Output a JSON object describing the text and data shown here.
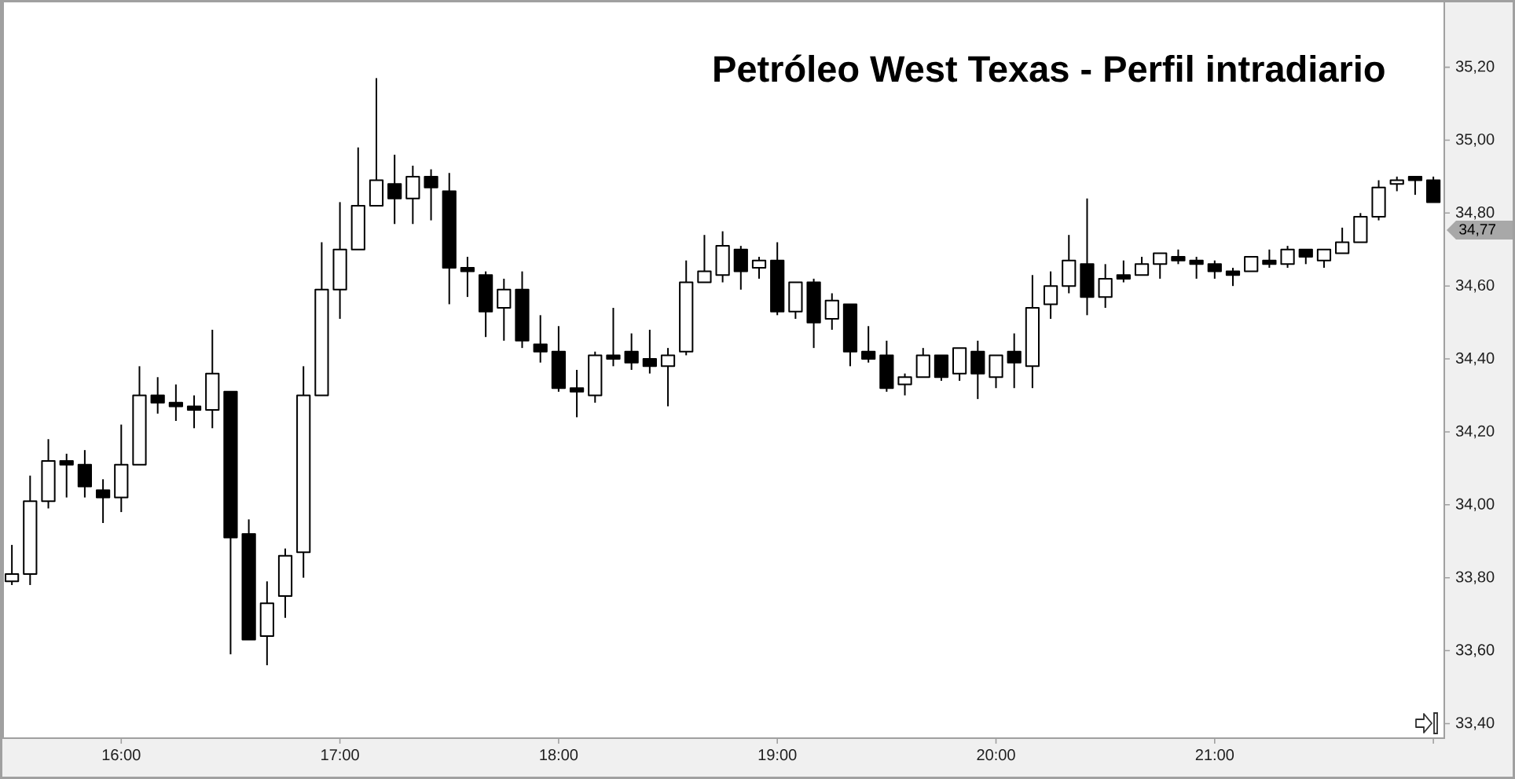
{
  "chart_data": {
    "type": "candlestick",
    "title": "Petróleo West Texas - Perfil intradiario",
    "x": [
      15.5,
      15.5833,
      15.6667,
      15.75,
      15.8333,
      15.9167,
      16,
      16.0833,
      16.1667,
      16.25,
      16.3333,
      16.4167,
      16.5,
      16.5833,
      16.6667,
      16.75,
      16.8333,
      16.9167,
      17,
      17.0833,
      17.1667,
      17.25,
      17.3333,
      17.4167,
      17.5,
      17.5833,
      17.6667,
      17.75,
      17.8333,
      17.9167,
      18,
      18.0833,
      18.1667,
      18.25,
      18.3333,
      18.4167,
      18.5,
      18.5833,
      18.6667,
      18.75,
      18.8333,
      18.9167,
      19,
      19.0833,
      19.1667,
      19.25,
      19.3333,
      19.4167,
      19.5,
      19.5833,
      19.6667,
      19.75,
      19.8333,
      19.9167,
      20,
      20.0833,
      20.1667,
      20.25,
      20.3333,
      20.4167,
      20.5,
      20.5833,
      20.6667,
      20.75,
      20.8333,
      20.9167,
      21,
      21.0833,
      21.1667,
      21.25,
      21.3333,
      21.4167,
      21.5,
      21.5833,
      21.6667,
      21.75,
      21.8333,
      21.9167,
      22
    ],
    "ohlc": [
      [
        33.79,
        33.89,
        33.78,
        33.81
      ],
      [
        33.81,
        34.08,
        33.78,
        34.01
      ],
      [
        34.01,
        34.18,
        33.99,
        34.12
      ],
      [
        34.12,
        34.14,
        34.02,
        34.11
      ],
      [
        34.11,
        34.15,
        34.02,
        34.05
      ],
      [
        34.04,
        34.07,
        33.95,
        34.02
      ],
      [
        34.02,
        34.22,
        33.98,
        34.11
      ],
      [
        34.11,
        34.38,
        34.11,
        34.3
      ],
      [
        34.3,
        34.35,
        34.25,
        34.28
      ],
      [
        34.28,
        34.33,
        34.23,
        34.27
      ],
      [
        34.27,
        34.3,
        34.21,
        34.26
      ],
      [
        34.26,
        34.48,
        34.21,
        34.36
      ],
      [
        34.31,
        34.31,
        33.59,
        33.91
      ],
      [
        33.92,
        33.96,
        33.63,
        33.63
      ],
      [
        33.64,
        33.79,
        33.56,
        33.73
      ],
      [
        33.75,
        33.88,
        33.69,
        33.86
      ],
      [
        33.87,
        34.38,
        33.8,
        34.3
      ],
      [
        34.3,
        34.72,
        34.3,
        34.59
      ],
      [
        34.59,
        34.83,
        34.51,
        34.7
      ],
      [
        34.7,
        34.98,
        34.7,
        34.82
      ],
      [
        34.82,
        35.17,
        34.82,
        34.89
      ],
      [
        34.88,
        34.96,
        34.77,
        34.84
      ],
      [
        34.84,
        34.93,
        34.77,
        34.9
      ],
      [
        34.9,
        34.92,
        34.78,
        34.87
      ],
      [
        34.86,
        34.91,
        34.55,
        34.65
      ],
      [
        34.65,
        34.68,
        34.57,
        34.64
      ],
      [
        34.63,
        34.64,
        34.46,
        34.53
      ],
      [
        34.54,
        34.62,
        34.45,
        34.59
      ],
      [
        34.59,
        34.64,
        34.43,
        34.45
      ],
      [
        34.44,
        34.52,
        34.39,
        34.42
      ],
      [
        34.42,
        34.49,
        34.31,
        34.32
      ],
      [
        34.32,
        34.37,
        34.24,
        34.31
      ],
      [
        34.3,
        34.42,
        34.28,
        34.41
      ],
      [
        34.41,
        34.54,
        34.38,
        34.4
      ],
      [
        34.42,
        34.47,
        34.37,
        34.39
      ],
      [
        34.4,
        34.48,
        34.36,
        34.38
      ],
      [
        34.38,
        34.43,
        34.27,
        34.41
      ],
      [
        34.42,
        34.67,
        34.41,
        34.61
      ],
      [
        34.61,
        34.74,
        34.61,
        34.64
      ],
      [
        34.63,
        34.75,
        34.61,
        34.71
      ],
      [
        34.7,
        34.71,
        34.59,
        34.64
      ],
      [
        34.65,
        34.68,
        34.62,
        34.67
      ],
      [
        34.67,
        34.72,
        34.52,
        34.53
      ],
      [
        34.53,
        34.61,
        34.51,
        34.61
      ],
      [
        34.61,
        34.62,
        34.43,
        34.5
      ],
      [
        34.51,
        34.58,
        34.48,
        34.56
      ],
      [
        34.55,
        34.55,
        34.38,
        34.42
      ],
      [
        34.42,
        34.49,
        34.39,
        34.4
      ],
      [
        34.41,
        34.45,
        34.31,
        34.32
      ],
      [
        34.33,
        34.36,
        34.3,
        34.35
      ],
      [
        34.35,
        34.43,
        34.35,
        34.41
      ],
      [
        34.41,
        34.41,
        34.34,
        34.35
      ],
      [
        34.36,
        34.43,
        34.34,
        34.43
      ],
      [
        34.42,
        34.45,
        34.29,
        34.36
      ],
      [
        34.35,
        34.41,
        34.32,
        34.41
      ],
      [
        34.42,
        34.47,
        34.32,
        34.39
      ],
      [
        34.38,
        34.63,
        34.32,
        34.54
      ],
      [
        34.55,
        34.64,
        34.51,
        34.6
      ],
      [
        34.6,
        34.74,
        34.58,
        34.67
      ],
      [
        34.66,
        34.84,
        34.52,
        34.57
      ],
      [
        34.57,
        34.66,
        34.54,
        34.62
      ],
      [
        34.63,
        34.67,
        34.61,
        34.62
      ],
      [
        34.63,
        34.68,
        34.63,
        34.66
      ],
      [
        34.66,
        34.69,
        34.62,
        34.69
      ],
      [
        34.68,
        34.7,
        34.66,
        34.67
      ],
      [
        34.67,
        34.68,
        34.62,
        34.66
      ],
      [
        34.66,
        34.67,
        34.62,
        34.64
      ],
      [
        34.64,
        34.65,
        34.6,
        34.63
      ],
      [
        34.64,
        34.68,
        34.64,
        34.68
      ],
      [
        34.67,
        34.7,
        34.65,
        34.66
      ],
      [
        34.66,
        34.71,
        34.65,
        34.7
      ],
      [
        34.7,
        34.7,
        34.66,
        34.68
      ],
      [
        34.67,
        34.7,
        34.65,
        34.7
      ],
      [
        34.69,
        34.76,
        34.69,
        34.72
      ],
      [
        34.72,
        34.8,
        34.72,
        34.79
      ],
      [
        34.79,
        34.89,
        34.78,
        34.87
      ],
      [
        34.88,
        34.9,
        34.86,
        34.89
      ],
      [
        34.9,
        34.9,
        34.85,
        34.89
      ],
      [
        34.89,
        34.9,
        34.83,
        34.83
      ]
    ],
    "colors": [
      "#ffffff",
      "#ffffff",
      "#ffffff",
      "#000000",
      "#000000",
      "#000000",
      "#ffffff",
      "#ffffff",
      "#000000",
      "#000000",
      "#000000",
      "#ffffff",
      "#000000",
      "#000000",
      "#ffffff",
      "#ffffff",
      "#ffffff",
      "#ffffff",
      "#ffffff",
      "#ffffff",
      "#ffffff",
      "#000000",
      "#ffffff",
      "#000000",
      "#000000",
      "#000000",
      "#000000",
      "#ffffff",
      "#000000",
      "#000000",
      "#000000",
      "#000000",
      "#ffffff",
      "#000000",
      "#000000",
      "#000000",
      "#ffffff",
      "#ffffff",
      "#ffffff",
      "#ffffff",
      "#000000",
      "#ffffff",
      "#000000",
      "#ffffff",
      "#000000",
      "#ffffff",
      "#000000",
      "#000000",
      "#000000",
      "#ffffff",
      "#ffffff",
      "#000000",
      "#ffffff",
      "#000000",
      "#ffffff",
      "#000000",
      "#ffffff",
      "#ffffff",
      "#ffffff",
      "#000000",
      "#ffffff",
      "#000000",
      "#ffffff",
      "#ffffff",
      "#000000",
      "#000000",
      "#000000",
      "#000000",
      "#ffffff",
      "#000000",
      "#ffffff",
      "#000000",
      "#ffffff",
      "#ffffff",
      "#ffffff",
      "#ffffff",
      "#ffffff",
      "#000000",
      "#000000"
    ],
    "xlim": [
      15.46,
      22.05
    ],
    "ylim": [
      33.36,
      35.38
    ],
    "xticks": [
      {
        "value": 16,
        "label": "16:00"
      },
      {
        "value": 17,
        "label": "17:00"
      },
      {
        "value": 18,
        "label": "18:00"
      },
      {
        "value": 19,
        "label": "19:00"
      },
      {
        "value": 20,
        "label": "20:00"
      },
      {
        "value": 21,
        "label": "21:00"
      },
      {
        "value": 22,
        "label": null
      }
    ],
    "yticks": [
      {
        "value": 33.4,
        "label": "33,40"
      },
      {
        "value": 33.6,
        "label": "33,60"
      },
      {
        "value": 33.8,
        "label": "33,80"
      },
      {
        "value": 34.0,
        "label": "34,00"
      },
      {
        "value": 34.2,
        "label": "34,20"
      },
      {
        "value": 34.4,
        "label": "34,40"
      },
      {
        "value": 34.6,
        "label": "34,60"
      },
      {
        "value": 34.8,
        "label": "34,80"
      },
      {
        "value": 35.0,
        "label": "35,00"
      },
      {
        "value": 35.2,
        "label": "35,20"
      }
    ],
    "annotations": [
      "34,77"
    ]
  }
}
